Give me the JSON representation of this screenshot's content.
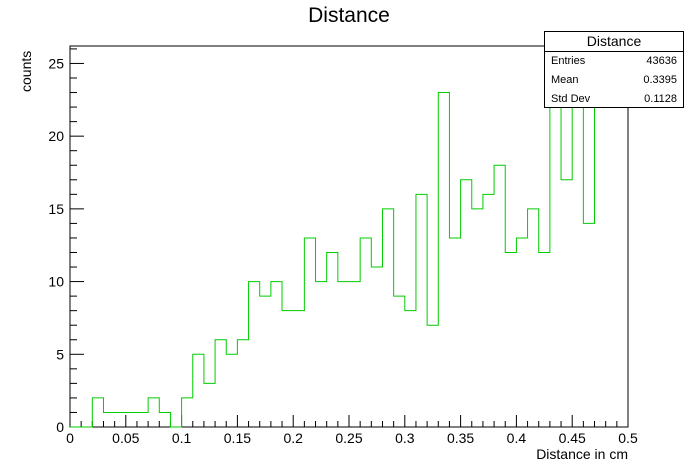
{
  "chart_data": {
    "type": "histogram",
    "title": "Distance",
    "xlabel": "Distance in cm",
    "ylabel": "counts",
    "xlim": [
      0,
      0.5
    ],
    "ylim": [
      0,
      26.2
    ],
    "bin_width": 0.01,
    "bin_edges_start": 0,
    "values": [
      0,
      0,
      2,
      1,
      1,
      1,
      1,
      2,
      1,
      0,
      2,
      5,
      3,
      6,
      5,
      6,
      10,
      9,
      10,
      8,
      8,
      13,
      10,
      12,
      10,
      10,
      13,
      11,
      15,
      9,
      8,
      16,
      7,
      23,
      13,
      17,
      15,
      16,
      18,
      12,
      13,
      15,
      12,
      26,
      17,
      27,
      14,
      22,
      22,
      22
    ],
    "x_ticks": [
      "0",
      "0.05",
      "0.1",
      "0.15",
      "0.2",
      "0.25",
      "0.3",
      "0.35",
      "0.4",
      "0.45",
      "0.5"
    ],
    "x_tick_values": [
      0,
      0.05,
      0.1,
      0.15,
      0.2,
      0.25,
      0.3,
      0.35,
      0.4,
      0.45,
      0.5
    ],
    "y_ticks": [
      "0",
      "5",
      "10",
      "15",
      "20",
      "25"
    ],
    "y_tick_values": [
      0,
      5,
      10,
      15,
      20,
      25
    ],
    "grid": false,
    "line_color": "#00cc00",
    "stats": {
      "name": "Distance",
      "rows": [
        {
          "label": "Entries",
          "value": "43636"
        },
        {
          "label": "Mean",
          "value": "0.3395"
        },
        {
          "label": "Std Dev",
          "value": "0.1128"
        }
      ]
    }
  }
}
